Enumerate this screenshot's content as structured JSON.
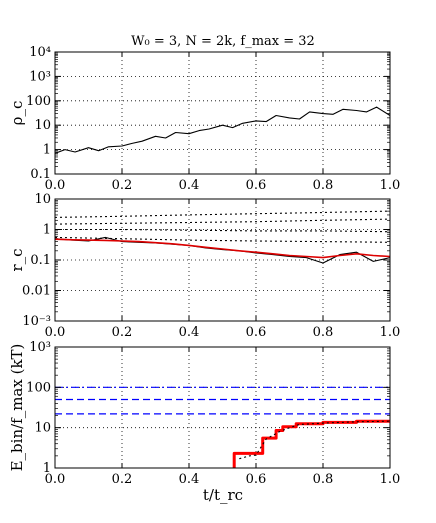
{
  "title": "W₀ = 3, N = 2k, f_max = 32",
  "xlabel": "t/t_rc",
  "xlim": [
    0,
    1
  ],
  "xticks": [
    "0.0",
    "0.2",
    "0.4",
    "0.6",
    "0.8",
    "1.0"
  ],
  "chart_data": [
    {
      "type": "line",
      "ylabel": "ρ_c",
      "yscale": "log",
      "ylim": [
        0.1,
        10000
      ],
      "ytick_values": [
        0.1,
        1,
        10,
        100,
        1000,
        10000
      ],
      "yticks": [
        "0.1",
        "1",
        "10",
        "100",
        "10³",
        "10⁴"
      ],
      "grid": true,
      "series": [
        {
          "color": "#000000",
          "style": "solid",
          "x": [
            0.0,
            0.03,
            0.06,
            0.1,
            0.13,
            0.16,
            0.2,
            0.23,
            0.26,
            0.3,
            0.33,
            0.36,
            0.4,
            0.43,
            0.46,
            0.5,
            0.53,
            0.56,
            0.6,
            0.63,
            0.66,
            0.7,
            0.73,
            0.76,
            0.8,
            0.83,
            0.86,
            0.9,
            0.93,
            0.96,
            1.0
          ],
          "values": [
            0.7,
            1.0,
            0.8,
            1.2,
            0.9,
            1.3,
            1.4,
            1.8,
            2.2,
            3.5,
            3.0,
            5.0,
            4.5,
            6.0,
            7.0,
            10,
            8.0,
            12,
            15,
            14,
            25,
            20,
            18,
            35,
            30,
            28,
            45,
            40,
            35,
            55,
            25
          ]
        }
      ]
    },
    {
      "type": "line",
      "ylabel": "r_c",
      "yscale": "log",
      "ylim": [
        0.001,
        10
      ],
      "ytick_values": [
        0.001,
        0.01,
        0.1,
        1,
        10
      ],
      "yticks": [
        "10⁻³",
        "0.01",
        "0.1",
        "1",
        "10"
      ],
      "grid": true,
      "series": [
        {
          "color": "#000000",
          "style": "solid",
          "x": [
            0.0,
            0.05,
            0.1,
            0.15,
            0.2,
            0.25,
            0.3,
            0.35,
            0.4,
            0.45,
            0.5,
            0.55,
            0.6,
            0.65,
            0.7,
            0.75,
            0.8,
            0.85,
            0.9,
            0.95,
            1.0
          ],
          "values": [
            0.5,
            0.45,
            0.42,
            0.55,
            0.4,
            0.38,
            0.36,
            0.33,
            0.3,
            0.25,
            0.22,
            0.2,
            0.17,
            0.15,
            0.13,
            0.12,
            0.08,
            0.15,
            0.18,
            0.09,
            0.12
          ]
        },
        {
          "color": "#dd0000",
          "style": "solid",
          "x": [
            0.0,
            0.05,
            0.1,
            0.15,
            0.2,
            0.25,
            0.3,
            0.35,
            0.4,
            0.45,
            0.5,
            0.55,
            0.6,
            0.65,
            0.7,
            0.75,
            0.8,
            0.85,
            0.9,
            0.95,
            1.0
          ],
          "values": [
            0.48,
            0.46,
            0.45,
            0.44,
            0.42,
            0.4,
            0.37,
            0.34,
            0.3,
            0.26,
            0.23,
            0.2,
            0.18,
            0.16,
            0.14,
            0.13,
            0.12,
            0.14,
            0.16,
            0.14,
            0.13
          ]
        },
        {
          "color": "#000000",
          "style": "dotted",
          "x": [
            0.0,
            0.2,
            0.4,
            0.6,
            0.8,
            1.0
          ],
          "values": [
            0.55,
            0.5,
            0.45,
            0.42,
            0.4,
            0.38
          ]
        },
        {
          "color": "#000000",
          "style": "dotted",
          "x": [
            0.0,
            0.2,
            0.4,
            0.6,
            0.8,
            1.0
          ],
          "values": [
            1.0,
            1.0,
            0.95,
            0.9,
            0.9,
            0.85
          ]
        },
        {
          "color": "#000000",
          "style": "dotted",
          "x": [
            0.0,
            0.2,
            0.4,
            0.6,
            0.8,
            1.0
          ],
          "values": [
            1.5,
            1.6,
            1.7,
            1.8,
            2.0,
            2.2
          ]
        },
        {
          "color": "#000000",
          "style": "dotted",
          "x": [
            0.0,
            0.2,
            0.4,
            0.6,
            0.8,
            1.0
          ],
          "values": [
            2.5,
            2.7,
            3.0,
            3.3,
            3.6,
            4.0
          ]
        }
      ]
    },
    {
      "type": "line",
      "ylabel": "E_bin/f_max (kT)",
      "yscale": "log",
      "ylim": [
        1,
        1000
      ],
      "ytick_values": [
        1,
        10,
        100,
        1000
      ],
      "yticks": [
        "1",
        "10",
        "100",
        "10³"
      ],
      "grid": true,
      "hlines": [
        {
          "y": 100,
          "color": "#0000ff",
          "style": "dashdot"
        },
        {
          "y": 50,
          "color": "#0000ff",
          "style": "dashed"
        },
        {
          "y": 22,
          "color": "#0000ff",
          "style": "dashed"
        }
      ],
      "series": [
        {
          "color": "#ff0000",
          "style": "solid",
          "x": [
            0.535,
            0.535,
            0.62,
            0.62,
            0.66,
            0.66,
            0.68,
            0.68,
            0.72,
            0.72,
            0.8,
            0.8,
            0.9,
            0.9,
            1.0
          ],
          "values": [
            1.0,
            2.3,
            2.3,
            5.5,
            5.5,
            8.5,
            8.5,
            10.5,
            10.5,
            12.5,
            12.5,
            13.5,
            13.5,
            14.5,
            14.5
          ]
        },
        {
          "color": "#000000",
          "style": "dotted",
          "x": [
            0.55,
            0.58,
            0.6,
            0.63,
            0.67,
            0.7,
            0.73,
            0.8,
            0.9,
            1.0
          ],
          "values": [
            1.7,
            2.0,
            2.1,
            5.2,
            8.0,
            10.0,
            12.0,
            13.0,
            14.0,
            14.5
          ]
        }
      ]
    }
  ]
}
